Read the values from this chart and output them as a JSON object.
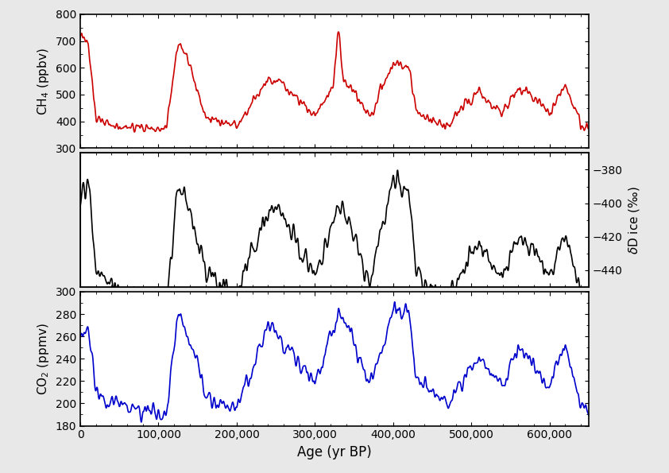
{
  "title": "",
  "xlabel": "Age (yr BP)",
  "ylabel_ch4": "CH$_4$ (ppbv)",
  "ylabel_co2": "CO$_2$ (ppmv)",
  "ylabel_dD": "$\\delta$D ice (‰)",
  "ch4_ylim": [
    300,
    800
  ],
  "ch4_yticks": [
    300,
    400,
    500,
    600,
    700,
    800
  ],
  "dD_ylim": [
    -450,
    -370
  ],
  "dD_yticks": [
    -440,
    -420,
    -400,
    -380
  ],
  "co2_ylim": [
    180,
    300
  ],
  "co2_yticks": [
    180,
    200,
    220,
    240,
    260,
    280,
    300
  ],
  "xlim": [
    0,
    650000
  ],
  "xticks": [
    0,
    100000,
    200000,
    300000,
    400000,
    500000,
    600000
  ],
  "xticklabels": [
    "0",
    "100,000",
    "200,000",
    "300,000",
    "400,000",
    "500,000",
    "600,000"
  ],
  "ch4_color": "#cc0000",
  "dD_color": "#000000",
  "co2_color": "#0000cc",
  "linewidth": 1.2,
  "bg_color": "#ffffff",
  "fig_bg": "#e8e8e8"
}
